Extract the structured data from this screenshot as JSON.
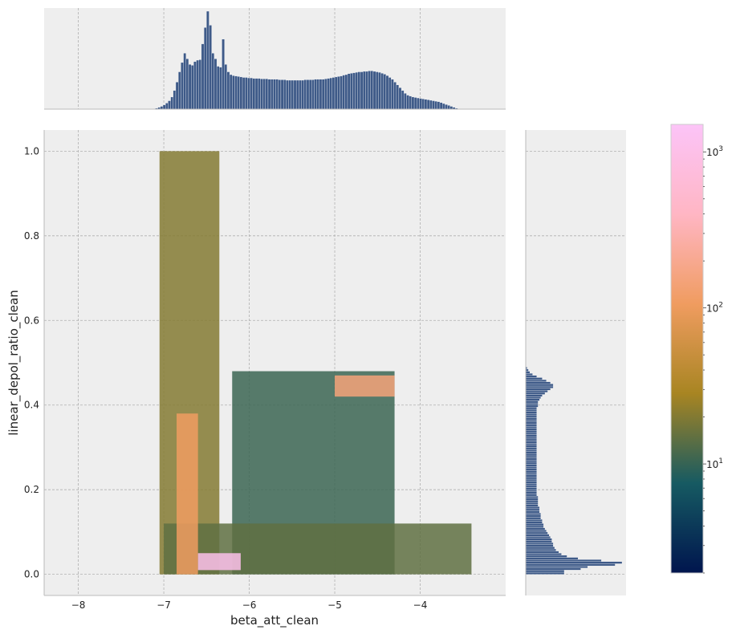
{
  "chart_data": {
    "type": "heatmap",
    "xlabel": "beta_att_clean",
    "ylabel": "linear_depol_ratio_clean",
    "xlim": [
      -8.4,
      -3.0
    ],
    "ylim": [
      -0.05,
      1.05
    ],
    "x_ticks": [
      -8,
      -7,
      -6,
      -5,
      -4
    ],
    "x_tick_labels": [
      "−8",
      "−7",
      "−6",
      "−5",
      "−4"
    ],
    "y_ticks": [
      0.0,
      0.2,
      0.4,
      0.6,
      0.8,
      1.0
    ],
    "y_tick_labels": [
      "0.0",
      "0.2",
      "0.4",
      "0.6",
      "0.8",
      "1.0"
    ],
    "grid": true,
    "colorbar": {
      "scale": "log",
      "range": [
        2,
        1500
      ],
      "ticks": [
        10,
        100,
        1000
      ],
      "tick_bases": [
        "10",
        "10",
        "10"
      ],
      "tick_exponents": [
        "1",
        "2",
        "3"
      ],
      "colormap": [
        "#00154e",
        "#165a62",
        "#a88522",
        "#f09c60",
        "#ffb6c4",
        "#fcc4f8"
      ]
    },
    "density_regions": [
      {
        "x": [
          -7.05,
          -6.35
        ],
        "y": [
          0.0,
          1.0
        ],
        "level": 0.35
      },
      {
        "x": [
          -6.2,
          -4.3
        ],
        "y": [
          0.0,
          0.48
        ],
        "level": 0.25
      },
      {
        "x": [
          -7.0,
          -3.4
        ],
        "y": [
          0.0,
          0.12
        ],
        "level": 0.3
      },
      {
        "x": [
          -6.85,
          -6.6
        ],
        "y": [
          0.0,
          0.38
        ],
        "level": 0.6
      },
      {
        "x": [
          -5.0,
          -4.3
        ],
        "y": [
          0.42,
          0.47
        ],
        "level": 0.65
      },
      {
        "x": [
          -6.6,
          -6.1
        ],
        "y": [
          0.01,
          0.05
        ],
        "level": 0.95
      }
    ],
    "x_histogram": {
      "bin_start": -7.1,
      "bin_width": 0.03,
      "counts": [
        2,
        4,
        6,
        9,
        13,
        18,
        26,
        40,
        58,
        80,
        100,
        120,
        108,
        96,
        94,
        102,
        105,
        106,
        140,
        175,
        210,
        180,
        120,
        108,
        92,
        90,
        150,
        96,
        80,
        74,
        72,
        71,
        70,
        69,
        68,
        68,
        67,
        67,
        66,
        66,
        66,
        65,
        65,
        65,
        64,
        64,
        64,
        64,
        63,
        63,
        63,
        62,
        62,
        62,
        62,
        62,
        62,
        62,
        63,
        63,
        63,
        63,
        64,
        64,
        64,
        64,
        65,
        66,
        67,
        68,
        69,
        70,
        71,
        73,
        74,
        76,
        77,
        78,
        79,
        80,
        80,
        81,
        81,
        82,
        82,
        81,
        80,
        79,
        77,
        75,
        72,
        68,
        64,
        58,
        52,
        46,
        40,
        34,
        30,
        28,
        26,
        25,
        24,
        23,
        22,
        21,
        20,
        19,
        18,
        17,
        16,
        14,
        12,
        10,
        8,
        6,
        4,
        2
      ]
    },
    "y_histogram": {
      "bin_start": 0.0,
      "bin_width": 0.005,
      "counts": [
        28,
        28,
        40,
        45,
        65,
        70,
        55,
        38,
        30,
        26,
        24,
        22,
        21,
        20,
        20,
        19,
        19,
        18,
        17,
        16,
        15,
        14,
        13,
        13,
        12,
        12,
        11,
        11,
        11,
        10,
        10,
        10,
        9,
        9,
        9,
        9,
        9,
        8,
        8,
        8,
        8,
        8,
        8,
        8,
        8,
        8,
        8,
        8,
        8,
        8,
        8,
        8,
        8,
        8,
        8,
        8,
        8,
        8,
        8,
        8,
        8,
        8,
        8,
        8,
        8,
        8,
        8,
        8,
        8,
        8,
        8,
        8,
        8,
        8,
        8,
        8,
        8,
        8,
        8,
        9,
        9,
        9,
        10,
        11,
        12,
        14,
        16,
        18,
        20,
        20,
        18,
        15,
        12,
        8,
        5,
        3,
        2,
        1
      ]
    }
  }
}
